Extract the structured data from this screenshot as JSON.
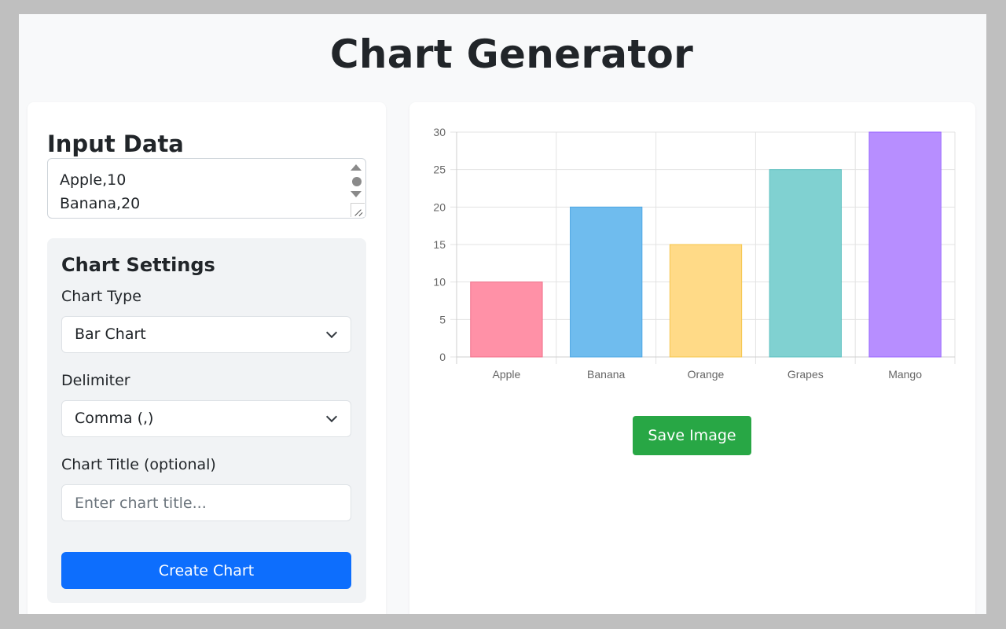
{
  "app": {
    "title": "Chart Generator"
  },
  "input": {
    "heading": "Input Data",
    "text": "Apple,10\nBanana,20"
  },
  "settings": {
    "heading": "Chart Settings",
    "chart_type_label": "Chart Type",
    "chart_type_value": "Bar Chart",
    "delimiter_label": "Delimiter",
    "delimiter_value": "Comma (,)",
    "title_label": "Chart Title (optional)",
    "title_placeholder": "Enter chart title...",
    "title_value": "",
    "create_button": "Create Chart"
  },
  "actions": {
    "save_button": "Save Image"
  },
  "colors": {
    "primary": "#0d6efd",
    "success": "#28a745",
    "bar_fills": [
      "#ff91a7",
      "#6fbcee",
      "#ffda87",
      "#80d1d1",
      "#b78eff"
    ],
    "bar_strokes": [
      "#f0708a",
      "#4ea7e4",
      "#f5c64b",
      "#5cc0c0",
      "#9966ff"
    ]
  },
  "chart_data": {
    "type": "bar",
    "categories": [
      "Apple",
      "Banana",
      "Orange",
      "Grapes",
      "Mango"
    ],
    "values": [
      10,
      20,
      15,
      25,
      30
    ],
    "title": "",
    "xlabel": "",
    "ylabel": "",
    "ylim": [
      0,
      30
    ],
    "yticks": [
      0,
      5,
      10,
      15,
      20,
      25,
      30
    ],
    "grid": true,
    "legend": "none"
  }
}
